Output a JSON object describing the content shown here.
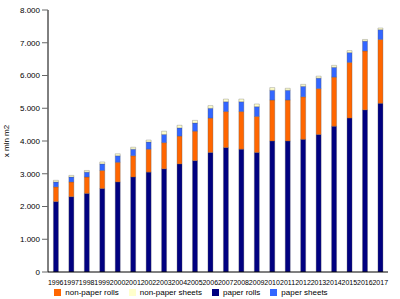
{
  "chart_data": {
    "type": "bar",
    "stacked": true,
    "y_label": "x mln m2",
    "categories": [
      "1996",
      "1997",
      "1998",
      "1999",
      "2000",
      "2001",
      "2002",
      "2003",
      "2004",
      "2005",
      "2006",
      "2007",
      "2008",
      "2009",
      "2010",
      "2011",
      "2012",
      "2013",
      "2014",
      "2015",
      "2016",
      "2017"
    ],
    "series": [
      {
        "name": "paper rolls",
        "color": "#000080",
        "values": [
          2150,
          2300,
          2400,
          2550,
          2750,
          2900,
          3050,
          3150,
          3300,
          3400,
          3650,
          3800,
          3750,
          3650,
          4000,
          4000,
          4050,
          4200,
          4450,
          4700,
          4950,
          5150
        ]
      },
      {
        "name": "non-paper rolls",
        "color": "#FF6600",
        "values": [
          450,
          450,
          500,
          550,
          600,
          650,
          700,
          800,
          850,
          900,
          1050,
          1100,
          1150,
          1100,
          1250,
          1250,
          1300,
          1400,
          1500,
          1700,
          1800,
          1950
        ]
      },
      {
        "name": "paper sheets",
        "color": "#3366FF",
        "values": [
          150,
          150,
          150,
          200,
          200,
          200,
          220,
          250,
          250,
          250,
          300,
          300,
          300,
          300,
          300,
          300,
          320,
          320,
          300,
          300,
          300,
          300
        ]
      },
      {
        "name": "non-paper sheets",
        "color": "#FFFFCC",
        "values": [
          50,
          50,
          50,
          60,
          60,
          60,
          60,
          100,
          80,
          80,
          80,
          80,
          80,
          80,
          80,
          60,
          60,
          60,
          60,
          60,
          50,
          50
        ]
      }
    ],
    "ylim": [
      0,
      8000
    ],
    "yticks": [
      0,
      {
        "value": 1000,
        "label": "1.000"
      },
      {
        "value": 2000,
        "label": "2.000"
      },
      {
        "value": 3000,
        "label": "3.000"
      },
      {
        "value": 4000,
        "label": "4.000"
      },
      {
        "value": 5000,
        "label": "5.000"
      },
      {
        "value": 6000,
        "label": "6.000"
      },
      {
        "value": 7000,
        "label": "7.000"
      },
      {
        "value": 8000,
        "label": "8.000"
      }
    ],
    "grid": false,
    "legend": "bottom"
  }
}
